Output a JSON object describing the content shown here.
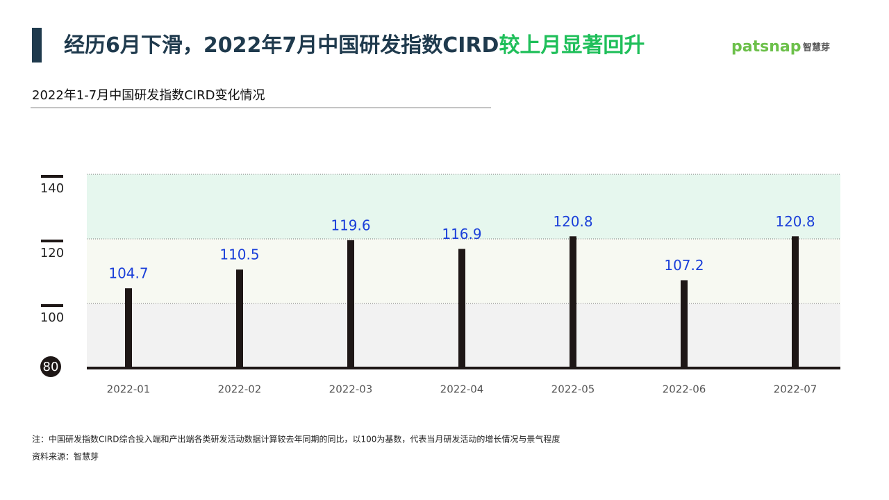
{
  "header": {
    "title": "经历6月下滑，2022年7月中国研发指数CIRD",
    "title_highlight": "较上月显著回升",
    "logo": "patsnap",
    "logo_cn": "智慧芽"
  },
  "chart_data": {
    "type": "bar",
    "title": "2022年1-7月中国研发指数CIRD变化情况",
    "categories": [
      "2022-01",
      "2022-02",
      "2022-03",
      "2022-04",
      "2022-05",
      "2022-06",
      "2022-07"
    ],
    "values": [
      104.7,
      110.5,
      119.6,
      116.9,
      120.8,
      107.2,
      120.8
    ],
    "color": "#1e1716",
    "label_color": "#1a3fd9",
    "ylim": [
      80,
      140
    ],
    "yticks": [
      80,
      100,
      120,
      140
    ],
    "band_colors": [
      "#f2f2f2",
      "#f7f9f2",
      "#e6f7ee"
    ],
    "grid": true
  },
  "notes": [
    "注：中国研发指数CIRD综合投入端和产出端各类研发活动数据计算较去年同期的同比，以100为基数，代表当月研发活动的增长情况与景气程度",
    "资料来源：智慧芽"
  ]
}
